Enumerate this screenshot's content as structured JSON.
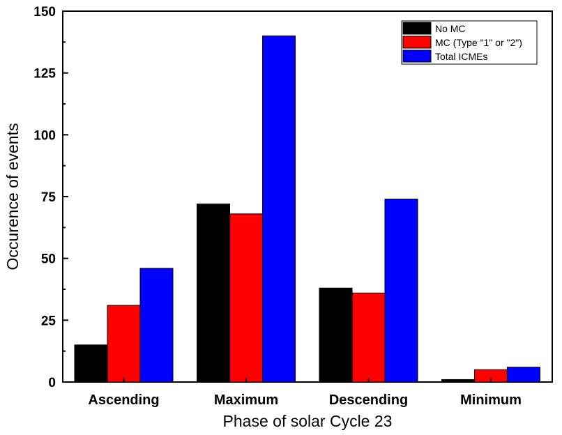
{
  "chart_data": {
    "type": "bar",
    "title": "",
    "xlabel": "Phase of solar Cycle 23",
    "ylabel": "Occurence of events",
    "categories": [
      "Ascending",
      "Maximum",
      "Descending",
      "Minimum"
    ],
    "series": [
      {
        "name": "No MC",
        "values": [
          15,
          72,
          38,
          1
        ],
        "color": "#000000"
      },
      {
        "name": "MC (Type \"1\" or \"2\")",
        "values": [
          31,
          68,
          36,
          5
        ],
        "color": "#ff0000"
      },
      {
        "name": "Total ICMEs",
        "values": [
          46,
          140,
          74,
          6
        ],
        "color": "#0000ff"
      }
    ],
    "ylim": [
      0,
      150
    ],
    "yticks": [
      "0",
      "25",
      "50",
      "75",
      "100",
      "125",
      "150"
    ],
    "legend_position": "top-right",
    "grid": false
  }
}
